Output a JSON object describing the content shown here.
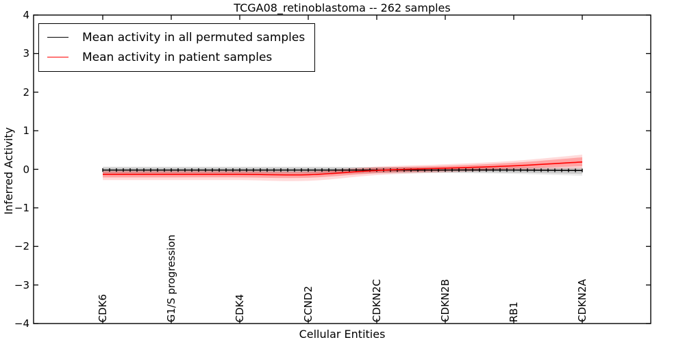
{
  "chart_data": {
    "type": "line",
    "title": "TCGA08_retinoblastoma -- 262 samples",
    "xlabel": "Cellular Entities",
    "ylabel": "Inferred Activity",
    "ylim": [
      -4,
      4
    ],
    "yticks": [
      4,
      3,
      2,
      1,
      0,
      -1,
      -2,
      -3,
      -4
    ],
    "ytick_labels": [
      "4",
      "3",
      "2",
      "1",
      "0",
      "−1",
      "−2",
      "−3",
      "−4"
    ],
    "categories": [
      "CDK6",
      "G1/S progression",
      "CDK4",
      "CCND2",
      "CDKN2C",
      "CDKN2B",
      "RB1",
      "CDKN2A"
    ],
    "grid": false,
    "legend_position": "upper left",
    "legend": [
      {
        "label": "Mean activity in all permuted samples",
        "color": "#000000"
      },
      {
        "label": "Mean activity in patient samples",
        "color": "#ff0000"
      }
    ],
    "n_points": 71,
    "series": [
      {
        "name": "Mean activity in all permuted samples",
        "color": "#000000",
        "markers": true,
        "values": [
          -0.02,
          -0.02,
          -0.02,
          -0.02,
          -0.02,
          -0.02,
          -0.02,
          -0.03
        ],
        "band_hi": [
          0.05,
          0.05,
          0.05,
          0.05,
          0.05,
          0.04,
          0.04,
          0.03
        ],
        "band_lo": [
          -0.09,
          -0.09,
          -0.09,
          -0.09,
          -0.08,
          -0.08,
          -0.09,
          -0.12
        ],
        "band_outer_hi": [
          0.07,
          0.07,
          0.07,
          0.07,
          0.06,
          0.06,
          0.05,
          0.05
        ],
        "band_outer_lo": [
          -0.12,
          -0.12,
          -0.12,
          -0.12,
          -0.11,
          -0.1,
          -0.12,
          -0.17
        ],
        "band_alpha": 0.13,
        "band_outer_alpha": 0.08
      },
      {
        "name": "Mean activity in patient samples",
        "color": "#ff0000",
        "markers": false,
        "values": [
          -0.13,
          -0.13,
          -0.13,
          -0.14,
          -0.03,
          0.03,
          0.09,
          0.19
        ],
        "band_hi": [
          -0.06,
          -0.06,
          -0.06,
          -0.07,
          0.04,
          0.09,
          0.17,
          0.31
        ],
        "band_lo": [
          -0.21,
          -0.21,
          -0.21,
          -0.22,
          -0.1,
          -0.04,
          0.02,
          0.08
        ],
        "band_outer_hi": [
          -0.03,
          -0.03,
          -0.03,
          -0.04,
          0.07,
          0.13,
          0.22,
          0.38
        ],
        "band_outer_lo": [
          -0.28,
          -0.28,
          -0.28,
          -0.3,
          -0.15,
          -0.08,
          -0.02,
          0.02
        ],
        "band_alpha": 0.25,
        "band_outer_alpha": 0.14
      }
    ]
  }
}
